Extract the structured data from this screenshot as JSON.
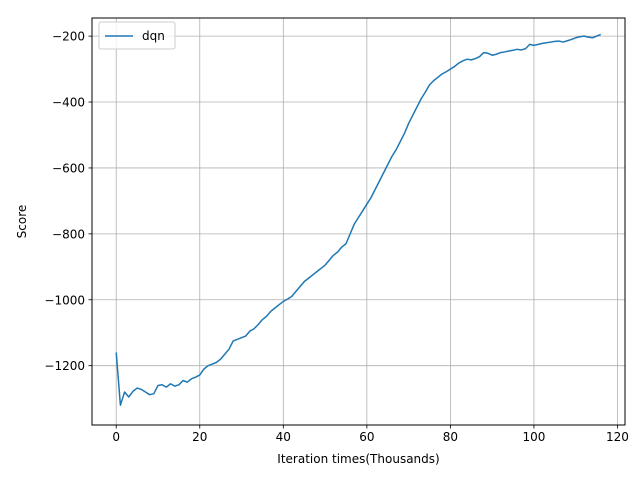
{
  "chart_data": {
    "type": "line",
    "title": "",
    "xlabel": "Iteration times(Thousands)",
    "ylabel": "Score",
    "xlim": [
      -5.8,
      121.8
    ],
    "ylim": [
      -1380,
      -145
    ],
    "xticks": [
      0,
      20,
      40,
      60,
      80,
      100,
      120
    ],
    "xtick_labels": [
      "0",
      "20",
      "40",
      "60",
      "80",
      "100",
      "120"
    ],
    "yticks": [
      -1200,
      -1000,
      -800,
      -600,
      -400,
      -200
    ],
    "ytick_labels": [
      "−1200",
      "−1000",
      "−800",
      "−600",
      "−400",
      "−200"
    ],
    "grid": true,
    "legend_position": "top-left",
    "colors": {
      "series": "#1f77b4",
      "grid": "#b0b0b0",
      "axes": "#000000"
    },
    "series": [
      {
        "name": "dqn",
        "x": [
          0,
          1,
          2,
          3,
          4,
          5,
          6,
          7,
          8,
          9,
          10,
          11,
          12,
          13,
          14,
          15,
          16,
          17,
          18,
          19,
          20,
          21,
          22,
          23,
          24,
          25,
          26,
          27,
          28,
          29,
          30,
          31,
          32,
          33,
          34,
          35,
          36,
          37,
          38,
          39,
          40,
          41,
          42,
          43,
          44,
          45,
          46,
          47,
          48,
          49,
          50,
          51,
          52,
          53,
          54,
          55,
          56,
          57,
          58,
          59,
          60,
          61,
          62,
          63,
          64,
          65,
          66,
          67,
          68,
          69,
          70,
          71,
          72,
          73,
          74,
          75,
          76,
          77,
          78,
          79,
          80,
          81,
          82,
          83,
          84,
          85,
          86,
          87,
          88,
          89,
          90,
          91,
          92,
          93,
          94,
          95,
          96,
          97,
          98,
          99,
          100,
          101,
          102,
          103,
          104,
          105,
          106,
          107,
          108,
          109,
          110,
          111,
          112,
          113,
          114,
          115,
          116
        ],
        "y": [
          -1160,
          -1320,
          -1280,
          -1295,
          -1278,
          -1268,
          -1272,
          -1280,
          -1288,
          -1285,
          -1260,
          -1258,
          -1265,
          -1255,
          -1262,
          -1258,
          -1245,
          -1250,
          -1240,
          -1235,
          -1228,
          -1210,
          -1200,
          -1195,
          -1190,
          -1180,
          -1165,
          -1150,
          -1125,
          -1120,
          -1115,
          -1110,
          -1095,
          -1088,
          -1075,
          -1060,
          -1050,
          -1035,
          -1025,
          -1015,
          -1005,
          -998,
          -990,
          -975,
          -960,
          -945,
          -935,
          -925,
          -915,
          -905,
          -895,
          -880,
          -865,
          -855,
          -840,
          -830,
          -800,
          -770,
          -750,
          -730,
          -710,
          -690,
          -665,
          -640,
          -615,
          -590,
          -565,
          -545,
          -520,
          -495,
          -465,
          -440,
          -415,
          -390,
          -370,
          -348,
          -335,
          -325,
          -315,
          -308,
          -300,
          -292,
          -282,
          -275,
          -270,
          -272,
          -268,
          -262,
          -250,
          -252,
          -258,
          -255,
          -250,
          -248,
          -245,
          -243,
          -240,
          -242,
          -238,
          -225,
          -228,
          -225,
          -222,
          -220,
          -218,
          -216,
          -215,
          -218,
          -214,
          -210,
          -205,
          -202,
          -200,
          -203,
          -205,
          -200,
          -195
        ]
      }
    ]
  }
}
